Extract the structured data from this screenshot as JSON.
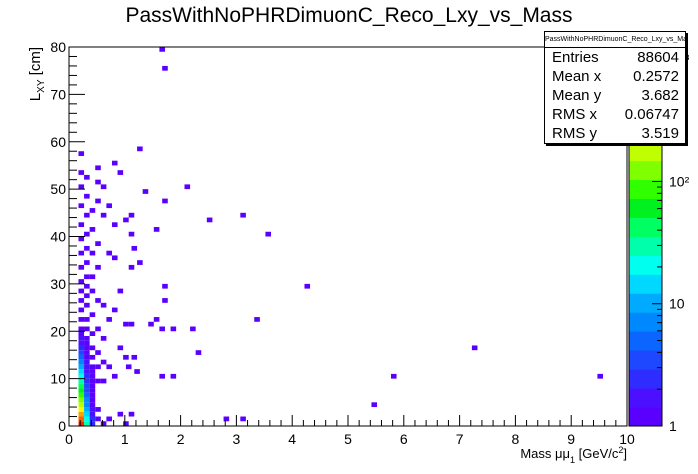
{
  "chart_data": {
    "type": "heatmap",
    "title": "PassWithNoPHRDimuonC_Reco_Lxy_vs_Mass",
    "xlabel_parts": [
      "Mass μμ",
      "1",
      " [GeV/c",
      "2",
      "]"
    ],
    "ylabel_parts": [
      "L",
      "XY",
      " [cm]"
    ],
    "xlim": [
      0,
      10
    ],
    "ylim": [
      0,
      80
    ],
    "x_ticks": [
      "0",
      "1",
      "2",
      "3",
      "4",
      "5",
      "6",
      "7",
      "8",
      "9",
      "10"
    ],
    "y_ticks": [
      "0",
      "10",
      "20",
      "30",
      "40",
      "50",
      "60",
      "70",
      "80"
    ],
    "z_scale": "log",
    "z_ticks": [
      "1",
      "10",
      "10²",
      "10³"
    ],
    "palette": [
      "#5a00ff",
      "#4a10ff",
      "#2f2cff",
      "#1e48ff",
      "#0a66ff",
      "#0088ff",
      "#00aaff",
      "#00d8ff",
      "#00ffee",
      "#00ffaa",
      "#00ff60",
      "#00f020",
      "#30ff00",
      "#80ff00",
      "#c0ff00",
      "#f0ff00",
      "#ffd200",
      "#ffa000",
      "#ff6000",
      "#ff2000"
    ],
    "stats": {
      "name": "PassWithNoPHRDimuonC_Reco_Lxy_vs_Mass",
      "rows": [
        {
          "label": "Entries",
          "value": "88604"
        },
        {
          "label": "Mean x",
          "value": "0.2572"
        },
        {
          "label": "Mean y",
          "value": "3.682"
        },
        {
          "label": "RMS x",
          "value": "0.06747"
        },
        {
          "label": "RMS y",
          "value": "3.519"
        }
      ]
    },
    "bins": [
      [
        0.22,
        0,
        19
      ],
      [
        0.22,
        1,
        18
      ],
      [
        0.22,
        2,
        17
      ],
      [
        0.22,
        3,
        15
      ],
      [
        0.22,
        4,
        14
      ],
      [
        0.22,
        5,
        13
      ],
      [
        0.22,
        6,
        12
      ],
      [
        0.22,
        7,
        11
      ],
      [
        0.22,
        8,
        10
      ],
      [
        0.22,
        9,
        9
      ],
      [
        0.22,
        10,
        8
      ],
      [
        0.22,
        11,
        7
      ],
      [
        0.22,
        12,
        6
      ],
      [
        0.22,
        13,
        5
      ],
      [
        0.22,
        14,
        4
      ],
      [
        0.22,
        15,
        3
      ],
      [
        0.22,
        16,
        2
      ],
      [
        0.22,
        17,
        1
      ],
      [
        0.22,
        18,
        1
      ],
      [
        0.22,
        19,
        0
      ],
      [
        0.22,
        20,
        0
      ],
      [
        0.22,
        22,
        0
      ],
      [
        0.22,
        24,
        0
      ],
      [
        0.22,
        26,
        0
      ],
      [
        0.22,
        28,
        0
      ],
      [
        0.22,
        30,
        0
      ],
      [
        0.22,
        33,
        0
      ],
      [
        0.22,
        36,
        0
      ],
      [
        0.22,
        39,
        0
      ],
      [
        0.22,
        42,
        0
      ],
      [
        0.22,
        46,
        0
      ],
      [
        0.22,
        50,
        0
      ],
      [
        0.22,
        53,
        0
      ],
      [
        0.22,
        57,
        0
      ],
      [
        0.32,
        0,
        9
      ],
      [
        0.32,
        1,
        8
      ],
      [
        0.32,
        2,
        7
      ],
      [
        0.32,
        3,
        6
      ],
      [
        0.32,
        4,
        5
      ],
      [
        0.32,
        5,
        5
      ],
      [
        0.32,
        6,
        4
      ],
      [
        0.32,
        7,
        3
      ],
      [
        0.32,
        8,
        3
      ],
      [
        0.32,
        9,
        2
      ],
      [
        0.32,
        10,
        2
      ],
      [
        0.32,
        11,
        1
      ],
      [
        0.32,
        12,
        1
      ],
      [
        0.32,
        13,
        1
      ],
      [
        0.32,
        14,
        0
      ],
      [
        0.32,
        15,
        0
      ],
      [
        0.32,
        16,
        0
      ],
      [
        0.32,
        17,
        0
      ],
      [
        0.32,
        18,
        0
      ],
      [
        0.32,
        20,
        0
      ],
      [
        0.32,
        22,
        0
      ],
      [
        0.32,
        25,
        0
      ],
      [
        0.32,
        27,
        0
      ],
      [
        0.32,
        29,
        0
      ],
      [
        0.32,
        31,
        0
      ],
      [
        0.32,
        34,
        0
      ],
      [
        0.32,
        37,
        0
      ],
      [
        0.32,
        40,
        0
      ],
      [
        0.32,
        44,
        0
      ],
      [
        0.32,
        48,
        0
      ],
      [
        0.32,
        52,
        0
      ],
      [
        0.42,
        0,
        2
      ],
      [
        0.42,
        1,
        2
      ],
      [
        0.42,
        2,
        1
      ],
      [
        0.42,
        3,
        1
      ],
      [
        0.42,
        4,
        0
      ],
      [
        0.42,
        5,
        0
      ],
      [
        0.42,
        6,
        0
      ],
      [
        0.42,
        7,
        0
      ],
      [
        0.42,
        8,
        0
      ],
      [
        0.42,
        9,
        0
      ],
      [
        0.42,
        10,
        0
      ],
      [
        0.42,
        11,
        0
      ],
      [
        0.42,
        12,
        0
      ],
      [
        0.42,
        14,
        0
      ],
      [
        0.42,
        16,
        0
      ],
      [
        0.42,
        19,
        0
      ],
      [
        0.42,
        23,
        0
      ],
      [
        0.42,
        28,
        0
      ],
      [
        0.42,
        31,
        0
      ],
      [
        0.42,
        36,
        0
      ],
      [
        0.42,
        41,
        0
      ],
      [
        0.42,
        45,
        0
      ],
      [
        0.52,
        1,
        0
      ],
      [
        0.52,
        3,
        0
      ],
      [
        0.52,
        9,
        0
      ],
      [
        0.52,
        12,
        0
      ],
      [
        0.52,
        15,
        0
      ],
      [
        0.52,
        20,
        0
      ],
      [
        0.52,
        26,
        0
      ],
      [
        0.52,
        33,
        0
      ],
      [
        0.52,
        38,
        0
      ],
      [
        0.52,
        47,
        0
      ],
      [
        0.52,
        51,
        0
      ],
      [
        0.52,
        54,
        0
      ],
      [
        0.62,
        0,
        0
      ],
      [
        0.62,
        9,
        0
      ],
      [
        0.62,
        13,
        0
      ],
      [
        0.62,
        18,
        0
      ],
      [
        0.62,
        25,
        0
      ],
      [
        0.62,
        44,
        0
      ],
      [
        0.62,
        50,
        0
      ],
      [
        0.72,
        1,
        0
      ],
      [
        0.72,
        12,
        0
      ],
      [
        0.72,
        22,
        0
      ],
      [
        0.72,
        36,
        0
      ],
      [
        0.72,
        46,
        0
      ],
      [
        0.82,
        10,
        0
      ],
      [
        0.82,
        24,
        0
      ],
      [
        0.82,
        35,
        0
      ],
      [
        0.82,
        42,
        0
      ],
      [
        0.82,
        55,
        0
      ],
      [
        0.92,
        2,
        0
      ],
      [
        0.92,
        16,
        0
      ],
      [
        0.92,
        28,
        0
      ],
      [
        0.92,
        53,
        0
      ],
      [
        1.02,
        0,
        0
      ],
      [
        1.02,
        14,
        0
      ],
      [
        1.02,
        21,
        0
      ],
      [
        1.02,
        43,
        0
      ],
      [
        1.12,
        2,
        0
      ],
      [
        1.12,
        21,
        0
      ],
      [
        1.12,
        33,
        0
      ],
      [
        1.12,
        44,
        0
      ],
      [
        1.07,
        12,
        0
      ],
      [
        1.12,
        40,
        0
      ],
      [
        1.17,
        37,
        0
      ],
      [
        1.22,
        11,
        0
      ],
      [
        1.17,
        14,
        0
      ],
      [
        1.27,
        34,
        0
      ],
      [
        1.27,
        58,
        0
      ],
      [
        1.37,
        49,
        0
      ],
      [
        1.47,
        21,
        0
      ],
      [
        1.57,
        22,
        0
      ],
      [
        1.57,
        41,
        0
      ],
      [
        1.67,
        79,
        0
      ],
      [
        1.67,
        20,
        0
      ],
      [
        1.67,
        10,
        0
      ],
      [
        1.72,
        75,
        0
      ],
      [
        1.72,
        47,
        0
      ],
      [
        1.72,
        29,
        0
      ],
      [
        1.72,
        26,
        0
      ],
      [
        1.87,
        20,
        0
      ],
      [
        1.87,
        10,
        0
      ],
      [
        2.12,
        50,
        0
      ],
      [
        2.22,
        20,
        0
      ],
      [
        2.32,
        15,
        0
      ],
      [
        2.52,
        43,
        0
      ],
      [
        3.12,
        44,
        0
      ],
      [
        3.12,
        1,
        0
      ],
      [
        3.37,
        22,
        0
      ],
      [
        3.57,
        40,
        0
      ],
      [
        4.27,
        29,
        0
      ],
      [
        5.47,
        4,
        0
      ],
      [
        5.82,
        10,
        0
      ],
      [
        7.27,
        16,
        0
      ],
      [
        9.52,
        10,
        0
      ],
      [
        2.82,
        1,
        0
      ]
    ]
  }
}
